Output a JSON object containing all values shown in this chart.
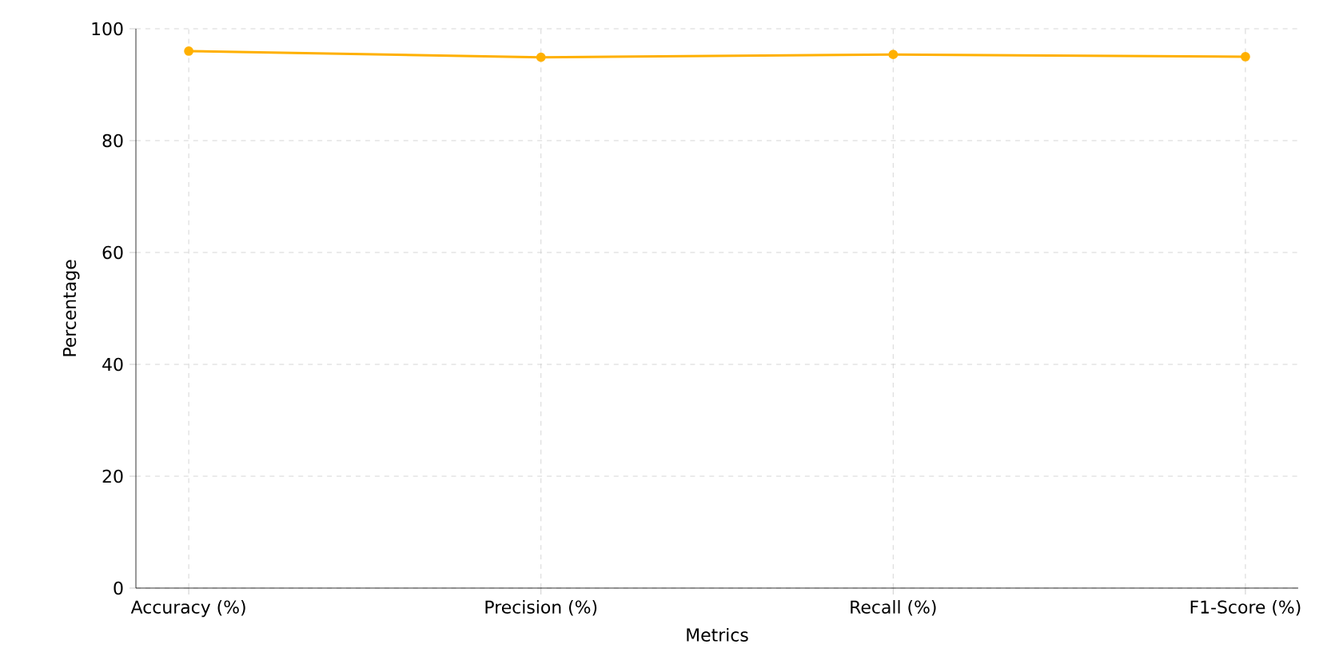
{
  "chart_data": {
    "type": "line",
    "xlabel": "Metrics",
    "ylabel": "Percentage",
    "categories": [
      "Accuracy (%)",
      "Precision (%)",
      "Recall (%)",
      "F1-Score (%)"
    ],
    "series": [
      {
        "color": "#ffb000",
        "values": [
          96.0,
          94.9,
          95.4,
          95.0
        ]
      }
    ],
    "ylim": [
      0,
      100
    ],
    "yticks": [
      0,
      20,
      40,
      60,
      80,
      100
    ],
    "grid": true,
    "marker": "circle",
    "line_style": "solid"
  }
}
